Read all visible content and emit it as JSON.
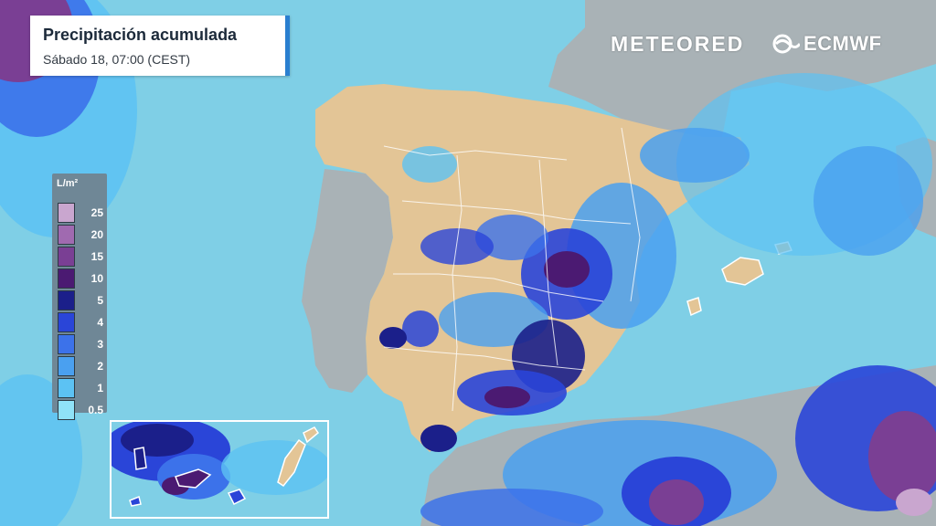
{
  "title": {
    "main": "Precipitación acumulada",
    "subtitle": "Sábado 18, 07:00 (CEST)",
    "accent_color": "#2a7fd0"
  },
  "brands": {
    "meteored": "METEORED",
    "ecmwf": "ECMWF"
  },
  "legend": {
    "unit": "L/m²",
    "levels": [
      {
        "label": "25",
        "color": "#c9a6cf"
      },
      {
        "label": "20",
        "color": "#a06ab0"
      },
      {
        "label": "15",
        "color": "#7a3f94"
      },
      {
        "label": "10",
        "color": "#4b1a72"
      },
      {
        "label": "5",
        "color": "#1b1f8a"
      },
      {
        "label": "4",
        "color": "#2a45d8"
      },
      {
        "label": "3",
        "color": "#3c72ea"
      },
      {
        "label": "2",
        "color": "#4aa0f0"
      },
      {
        "label": "1",
        "color": "#5cc2f3"
      },
      {
        "label": "0.5",
        "color": "#8fe2f8"
      }
    ]
  },
  "map_colors": {
    "sea": "#7fcfe6",
    "land_dry": "#e3c596",
    "land_foreign": "#a9b2b6",
    "borders": "#ffffff"
  }
}
